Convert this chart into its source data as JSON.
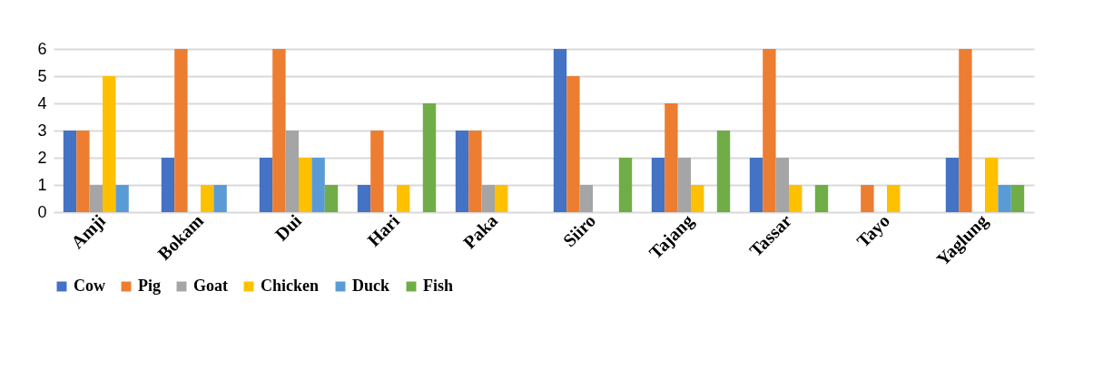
{
  "chart_data": {
    "type": "bar",
    "categories": [
      "Amji",
      "Bokam",
      "Dui",
      "Hari",
      "Paka",
      "Siiro",
      "Tajang",
      "Tassar",
      "Tayo",
      "Yaglung"
    ],
    "series": [
      {
        "name": "Cow",
        "color": "#4472c4",
        "values": [
          3,
          2,
          2,
          1,
          3,
          6,
          2,
          2,
          0,
          2
        ]
      },
      {
        "name": "Pig",
        "color": "#ed7d31",
        "values": [
          3,
          6,
          6,
          3,
          3,
          5,
          4,
          6,
          1,
          6
        ]
      },
      {
        "name": "Goat",
        "color": "#a5a5a5",
        "values": [
          1,
          0,
          3,
          0,
          1,
          1,
          2,
          2,
          0,
          0
        ]
      },
      {
        "name": "Chicken",
        "color": "#ffc000",
        "values": [
          5,
          1,
          2,
          1,
          1,
          0,
          1,
          1,
          1,
          2
        ]
      },
      {
        "name": "Duck",
        "color": "#5b9bd5",
        "values": [
          1,
          1,
          2,
          0,
          0,
          0,
          0,
          0,
          0,
          1
        ]
      },
      {
        "name": "Fish",
        "color": "#70ad47",
        "values": [
          0,
          0,
          1,
          4,
          0,
          2,
          3,
          1,
          0,
          1
        ]
      }
    ],
    "ylim": [
      0,
      6
    ],
    "yticks": [
      0,
      1,
      2,
      3,
      4,
      5,
      6
    ],
    "grid": "y",
    "legend": "bottom"
  }
}
